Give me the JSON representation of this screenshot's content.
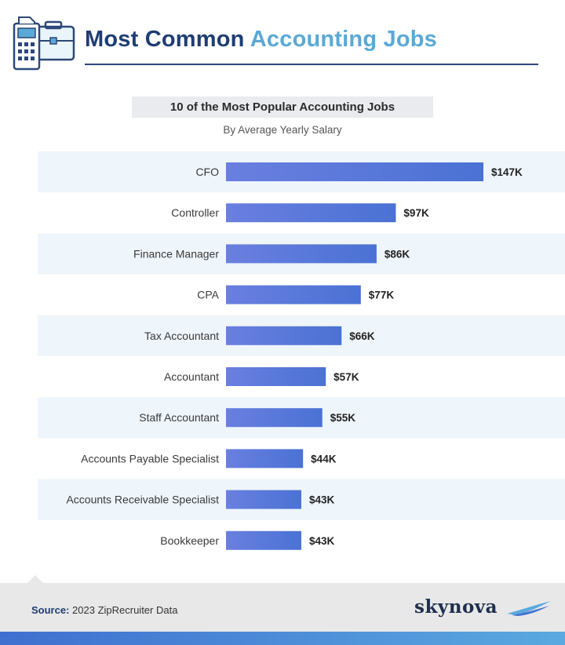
{
  "header": {
    "title_part1": "Most Common",
    "title_part2": "Accounting Jobs",
    "icon": "calculator-briefcase-icon"
  },
  "chart_data": {
    "type": "bar",
    "orientation": "horizontal",
    "title": "10 of the Most Popular Accounting Jobs",
    "subtitle": "By Average Yearly Salary",
    "categories": [
      "CFO",
      "Controller",
      "Finance Manager",
      "CPA",
      "Tax Accountant",
      "Accountant",
      "Staff Accountant",
      "Accounts Payable Specialist",
      "Accounts Receivable Specialist",
      "Bookkeeper"
    ],
    "values": [
      147,
      97,
      86,
      77,
      66,
      57,
      55,
      44,
      43,
      43
    ],
    "labels": [
      "$147K",
      "$97K",
      "$86K",
      "$77K",
      "$66K",
      "$57K",
      "$55K",
      "$44K",
      "$43K",
      "$43K"
    ],
    "unit": "USD thousands",
    "xlim": [
      0,
      147
    ],
    "colors": {
      "bar_start": "#6a7fe0",
      "bar_end": "#4a72d4",
      "row_band": "#eef5fb"
    }
  },
  "footer": {
    "source_label": "Source:",
    "source_text": "2023 ZipRecruiter Data",
    "brand": "skynova",
    "brand_icon": "swoosh-icon"
  }
}
